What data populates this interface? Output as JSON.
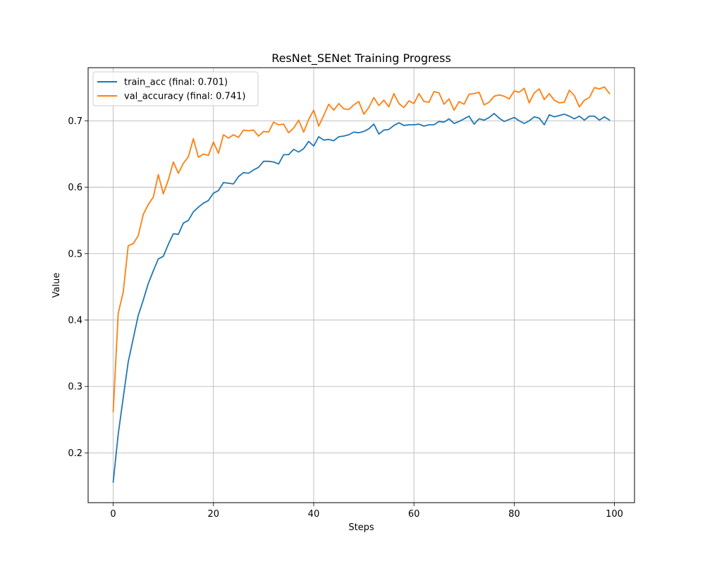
{
  "chart_data": {
    "type": "line",
    "title": "ResNet_SENet Training Progress",
    "xlabel": "Steps",
    "ylabel": "Value",
    "xlim": [
      -5,
      104
    ],
    "ylim": [
      0.125,
      0.78
    ],
    "xticks": [
      0,
      20,
      40,
      60,
      80,
      100
    ],
    "yticks": [
      0.2,
      0.3,
      0.4,
      0.5,
      0.6,
      0.7
    ],
    "ytick_labels": [
      "0.2",
      "0.3",
      "0.4",
      "0.5",
      "0.6",
      "0.7"
    ],
    "grid": true,
    "legend_position": "upper-left",
    "series": [
      {
        "name": "train_acc (final: 0.701)",
        "color": "#1f77b4",
        "x": [
          0,
          1,
          2,
          3,
          4,
          5,
          6,
          7,
          8,
          9,
          10,
          11,
          12,
          13,
          14,
          15,
          16,
          17,
          18,
          19,
          20,
          21,
          22,
          23,
          24,
          25,
          26,
          27,
          28,
          29,
          30,
          31,
          32,
          33,
          34,
          35,
          36,
          37,
          38,
          39,
          40,
          41,
          42,
          43,
          44,
          45,
          46,
          47,
          48,
          49,
          50,
          51,
          52,
          53,
          54,
          55,
          56,
          57,
          58,
          59,
          60,
          61,
          62,
          63,
          64,
          65,
          66,
          67,
          68,
          69,
          70,
          71,
          72,
          73,
          74,
          75,
          76,
          77,
          78,
          79,
          80,
          81,
          82,
          83,
          84,
          85,
          86,
          87,
          88,
          89,
          90,
          91,
          92,
          93,
          94,
          95,
          96,
          97,
          98,
          99
        ],
        "values": [
          0.156,
          0.228,
          0.283,
          0.337,
          0.372,
          0.407,
          0.43,
          0.455,
          0.474,
          0.492,
          0.496,
          0.514,
          0.53,
          0.529,
          0.546,
          0.55,
          0.563,
          0.57,
          0.576,
          0.58,
          0.591,
          0.595,
          0.607,
          0.606,
          0.605,
          0.616,
          0.622,
          0.621,
          0.626,
          0.63,
          0.639,
          0.639,
          0.638,
          0.635,
          0.649,
          0.649,
          0.657,
          0.653,
          0.658,
          0.669,
          0.662,
          0.676,
          0.671,
          0.672,
          0.67,
          0.676,
          0.677,
          0.679,
          0.683,
          0.682,
          0.684,
          0.688,
          0.695,
          0.68,
          0.686,
          0.687,
          0.693,
          0.697,
          0.693,
          0.694,
          0.694,
          0.695,
          0.692,
          0.694,
          0.694,
          0.699,
          0.698,
          0.703,
          0.696,
          0.699,
          0.703,
          0.707,
          0.695,
          0.703,
          0.701,
          0.705,
          0.711,
          0.704,
          0.699,
          0.702,
          0.705,
          0.7,
          0.696,
          0.7,
          0.706,
          0.704,
          0.694,
          0.709,
          0.706,
          0.708,
          0.71,
          0.707,
          0.703,
          0.707,
          0.701,
          0.707,
          0.707,
          0.701,
          0.706,
          0.701
        ]
      },
      {
        "name": "val_accuracy (final: 0.741)",
        "color": "#ff7f0e",
        "x": [
          0,
          1,
          2,
          3,
          4,
          5,
          6,
          7,
          8,
          9,
          10,
          11,
          12,
          13,
          14,
          15,
          16,
          17,
          18,
          19,
          20,
          21,
          22,
          23,
          24,
          25,
          26,
          27,
          28,
          29,
          30,
          31,
          32,
          33,
          34,
          35,
          36,
          37,
          38,
          39,
          40,
          41,
          42,
          43,
          44,
          45,
          46,
          47,
          48,
          49,
          50,
          51,
          52,
          53,
          54,
          55,
          56,
          57,
          58,
          59,
          60,
          61,
          62,
          63,
          64,
          65,
          66,
          67,
          68,
          69,
          70,
          71,
          72,
          73,
          74,
          75,
          76,
          77,
          78,
          79,
          80,
          81,
          82,
          83,
          84,
          85,
          86,
          87,
          88,
          89,
          90,
          91,
          92,
          93,
          94,
          95,
          96,
          97,
          98,
          99
        ],
        "values": [
          0.262,
          0.41,
          0.442,
          0.512,
          0.515,
          0.527,
          0.559,
          0.574,
          0.585,
          0.619,
          0.59,
          0.611,
          0.638,
          0.621,
          0.636,
          0.646,
          0.673,
          0.645,
          0.65,
          0.648,
          0.668,
          0.651,
          0.679,
          0.674,
          0.679,
          0.675,
          0.686,
          0.685,
          0.686,
          0.677,
          0.684,
          0.683,
          0.698,
          0.694,
          0.695,
          0.682,
          0.689,
          0.701,
          0.683,
          0.702,
          0.716,
          0.692,
          0.708,
          0.725,
          0.716,
          0.726,
          0.718,
          0.717,
          0.724,
          0.729,
          0.71,
          0.72,
          0.735,
          0.723,
          0.731,
          0.721,
          0.741,
          0.726,
          0.72,
          0.73,
          0.726,
          0.741,
          0.729,
          0.728,
          0.744,
          0.742,
          0.725,
          0.733,
          0.716,
          0.729,
          0.725,
          0.74,
          0.741,
          0.743,
          0.724,
          0.728,
          0.737,
          0.739,
          0.737,
          0.733,
          0.745,
          0.743,
          0.749,
          0.727,
          0.742,
          0.748,
          0.732,
          0.741,
          0.731,
          0.727,
          0.728,
          0.746,
          0.738,
          0.721,
          0.731,
          0.735,
          0.75,
          0.748,
          0.751,
          0.741
        ]
      }
    ]
  }
}
